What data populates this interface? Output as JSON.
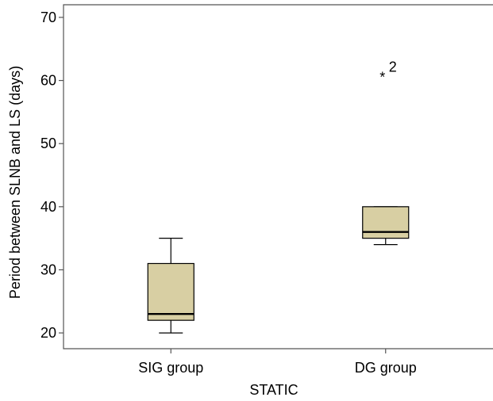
{
  "chart_data": {
    "type": "boxplot",
    "title": "",
    "xlabel": "STATIC",
    "ylabel": "Period between SLNB and LS (days)",
    "ylim": [
      17.5,
      72
    ],
    "yticks": [
      20,
      30,
      40,
      50,
      60,
      70
    ],
    "categories": [
      "SIG group",
      "DG group"
    ],
    "box_color": "#d8cfa3",
    "grid": false,
    "series": [
      {
        "category": "SIG group",
        "min": 20,
        "q1": 22,
        "median": 23,
        "q3": 31,
        "max": 35,
        "outliers": []
      },
      {
        "category": "DG group",
        "min": 34,
        "q1": 35,
        "median": 36,
        "q3": 40,
        "max": 40,
        "outliers": [
          {
            "value": 61,
            "marker": "*",
            "label": "2"
          }
        ]
      }
    ]
  }
}
